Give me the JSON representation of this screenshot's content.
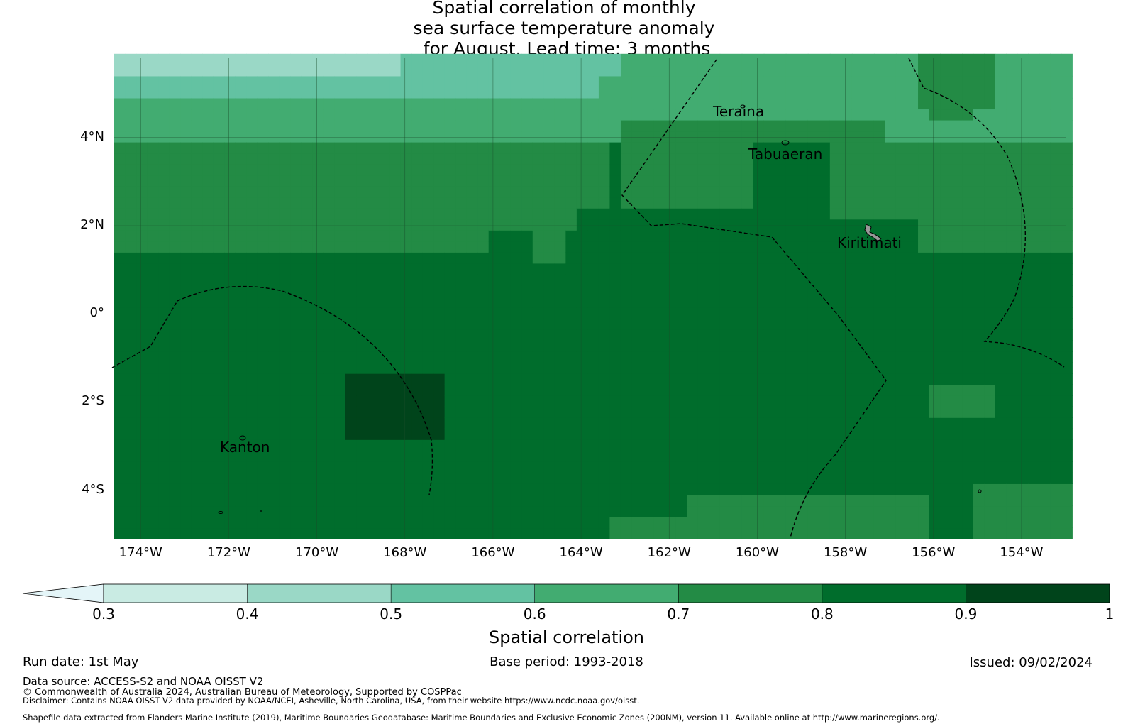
{
  "title": {
    "line1": "Spatial correlation of monthly",
    "line2": "sea surface temperature anomaly",
    "line3": " for August. Lead time: 3 months"
  },
  "map": {
    "lon_range": [
      -174.6,
      -153.0
    ],
    "lat_range": [
      -5.1,
      5.8
    ],
    "grid_step_deg": 0.25,
    "lat_ticks": [
      "4°N",
      "2°N",
      "0°",
      "2°S",
      "4°S"
    ],
    "lon_ticks": [
      "174°W",
      "172°W",
      "170°W",
      "168°W",
      "166°W",
      "164°W",
      "162°W",
      "160°W",
      "158°W",
      "156°W",
      "154°W"
    ],
    "islands": [
      {
        "name": "Teraina"
      },
      {
        "name": "Tabuaeran"
      },
      {
        "name": "Kiritimati"
      },
      {
        "name": "Kanton"
      }
    ],
    "eez_boundary_style": "dashed"
  },
  "colorbar": {
    "ticks": [
      "0.3",
      "0.4",
      "0.5",
      "0.6",
      "0.7",
      "0.8",
      "0.9",
      "1"
    ],
    "colors": [
      "#e4f5f8",
      "#c9ebe3",
      "#9ad8c6",
      "#63c2a2",
      "#42ac71",
      "#238b45",
      "#006d2c",
      "#00441b"
    ],
    "extend": "min",
    "label": "Spatial correlation"
  },
  "footer": {
    "run_date": "Run date: 1st May",
    "base_period": "Base period: 1993-2018",
    "issued": "Issued: 09/02/2024",
    "data_source": "Data source: ACCESS-S2 and NOAA OISST V2",
    "copyright": "© Commonwealth of Australia 2024, Australian Bureau of Meteorology, Supported by COSPPac",
    "disclaimer": "Disclaimer: Contains NOAA OISST V2 data provided by NOAA/NCEI, Asheville, North Carolina, USA, from their website https://www.ncdc.noaa.gov/oisst.",
    "shapefile": "Shapefile data extracted from Flanders Marine Institute (2019), Maritime Boundaries Geodatabase: Maritime Boundaries and Exclusive Economic Zones (200NM), version 11. Available online at http://www.marineregions.org/."
  }
}
